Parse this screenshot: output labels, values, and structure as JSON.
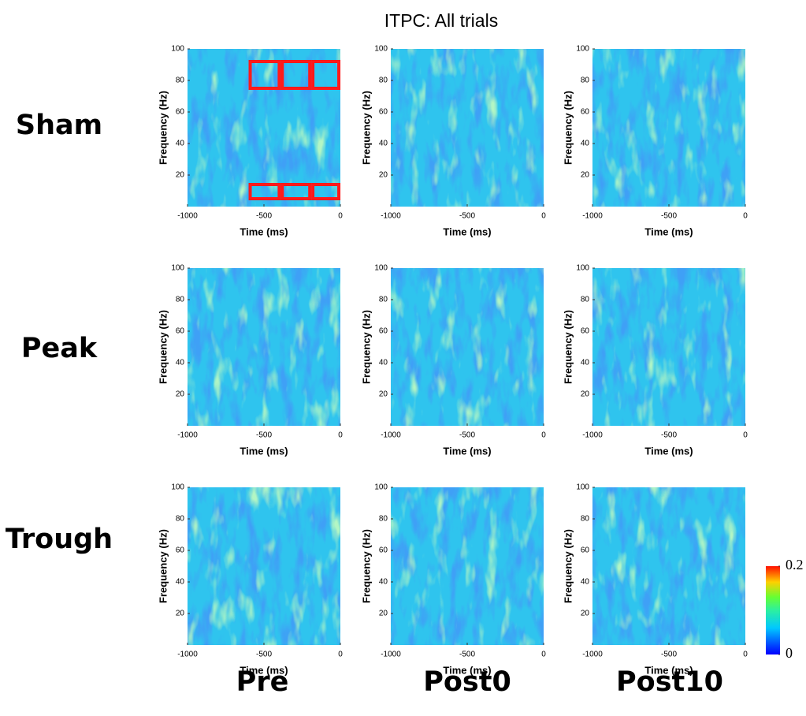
{
  "chart_data": {
    "type": "heatmap",
    "title": "ITPC: All trials",
    "rows": [
      "Sham",
      "Peak",
      "Trough"
    ],
    "columns": [
      "Pre",
      "Post0",
      "Post10"
    ],
    "x_label": "Time (ms)",
    "y_label": "Frequency (Hz)",
    "xlim": [
      -1000,
      0
    ],
    "ylim": [
      0,
      100
    ],
    "xticks": [
      -1000,
      -500,
      0
    ],
    "yticks": [
      20,
      40,
      60,
      80,
      100
    ],
    "colorbar": {
      "clim": [
        0,
        0.2
      ],
      "ticks": [
        0,
        0.2
      ]
    },
    "boxes": [
      {
        "x": [
          -590,
          -400
        ],
        "y": [
          75,
          92
        ]
      },
      {
        "x": [
          -380,
          -200
        ],
        "y": [
          75,
          92
        ]
      },
      {
        "x": [
          -180,
          -10
        ],
        "y": [
          75,
          92
        ]
      },
      {
        "x": [
          -590,
          -400
        ],
        "y": [
          5,
          14
        ]
      },
      {
        "x": [
          -380,
          -200
        ],
        "y": [
          5,
          14
        ]
      },
      {
        "x": [
          -180,
          -10
        ],
        "y": [
          5,
          14
        ]
      }
    ],
    "box_color": "#ff1a1a"
  }
}
